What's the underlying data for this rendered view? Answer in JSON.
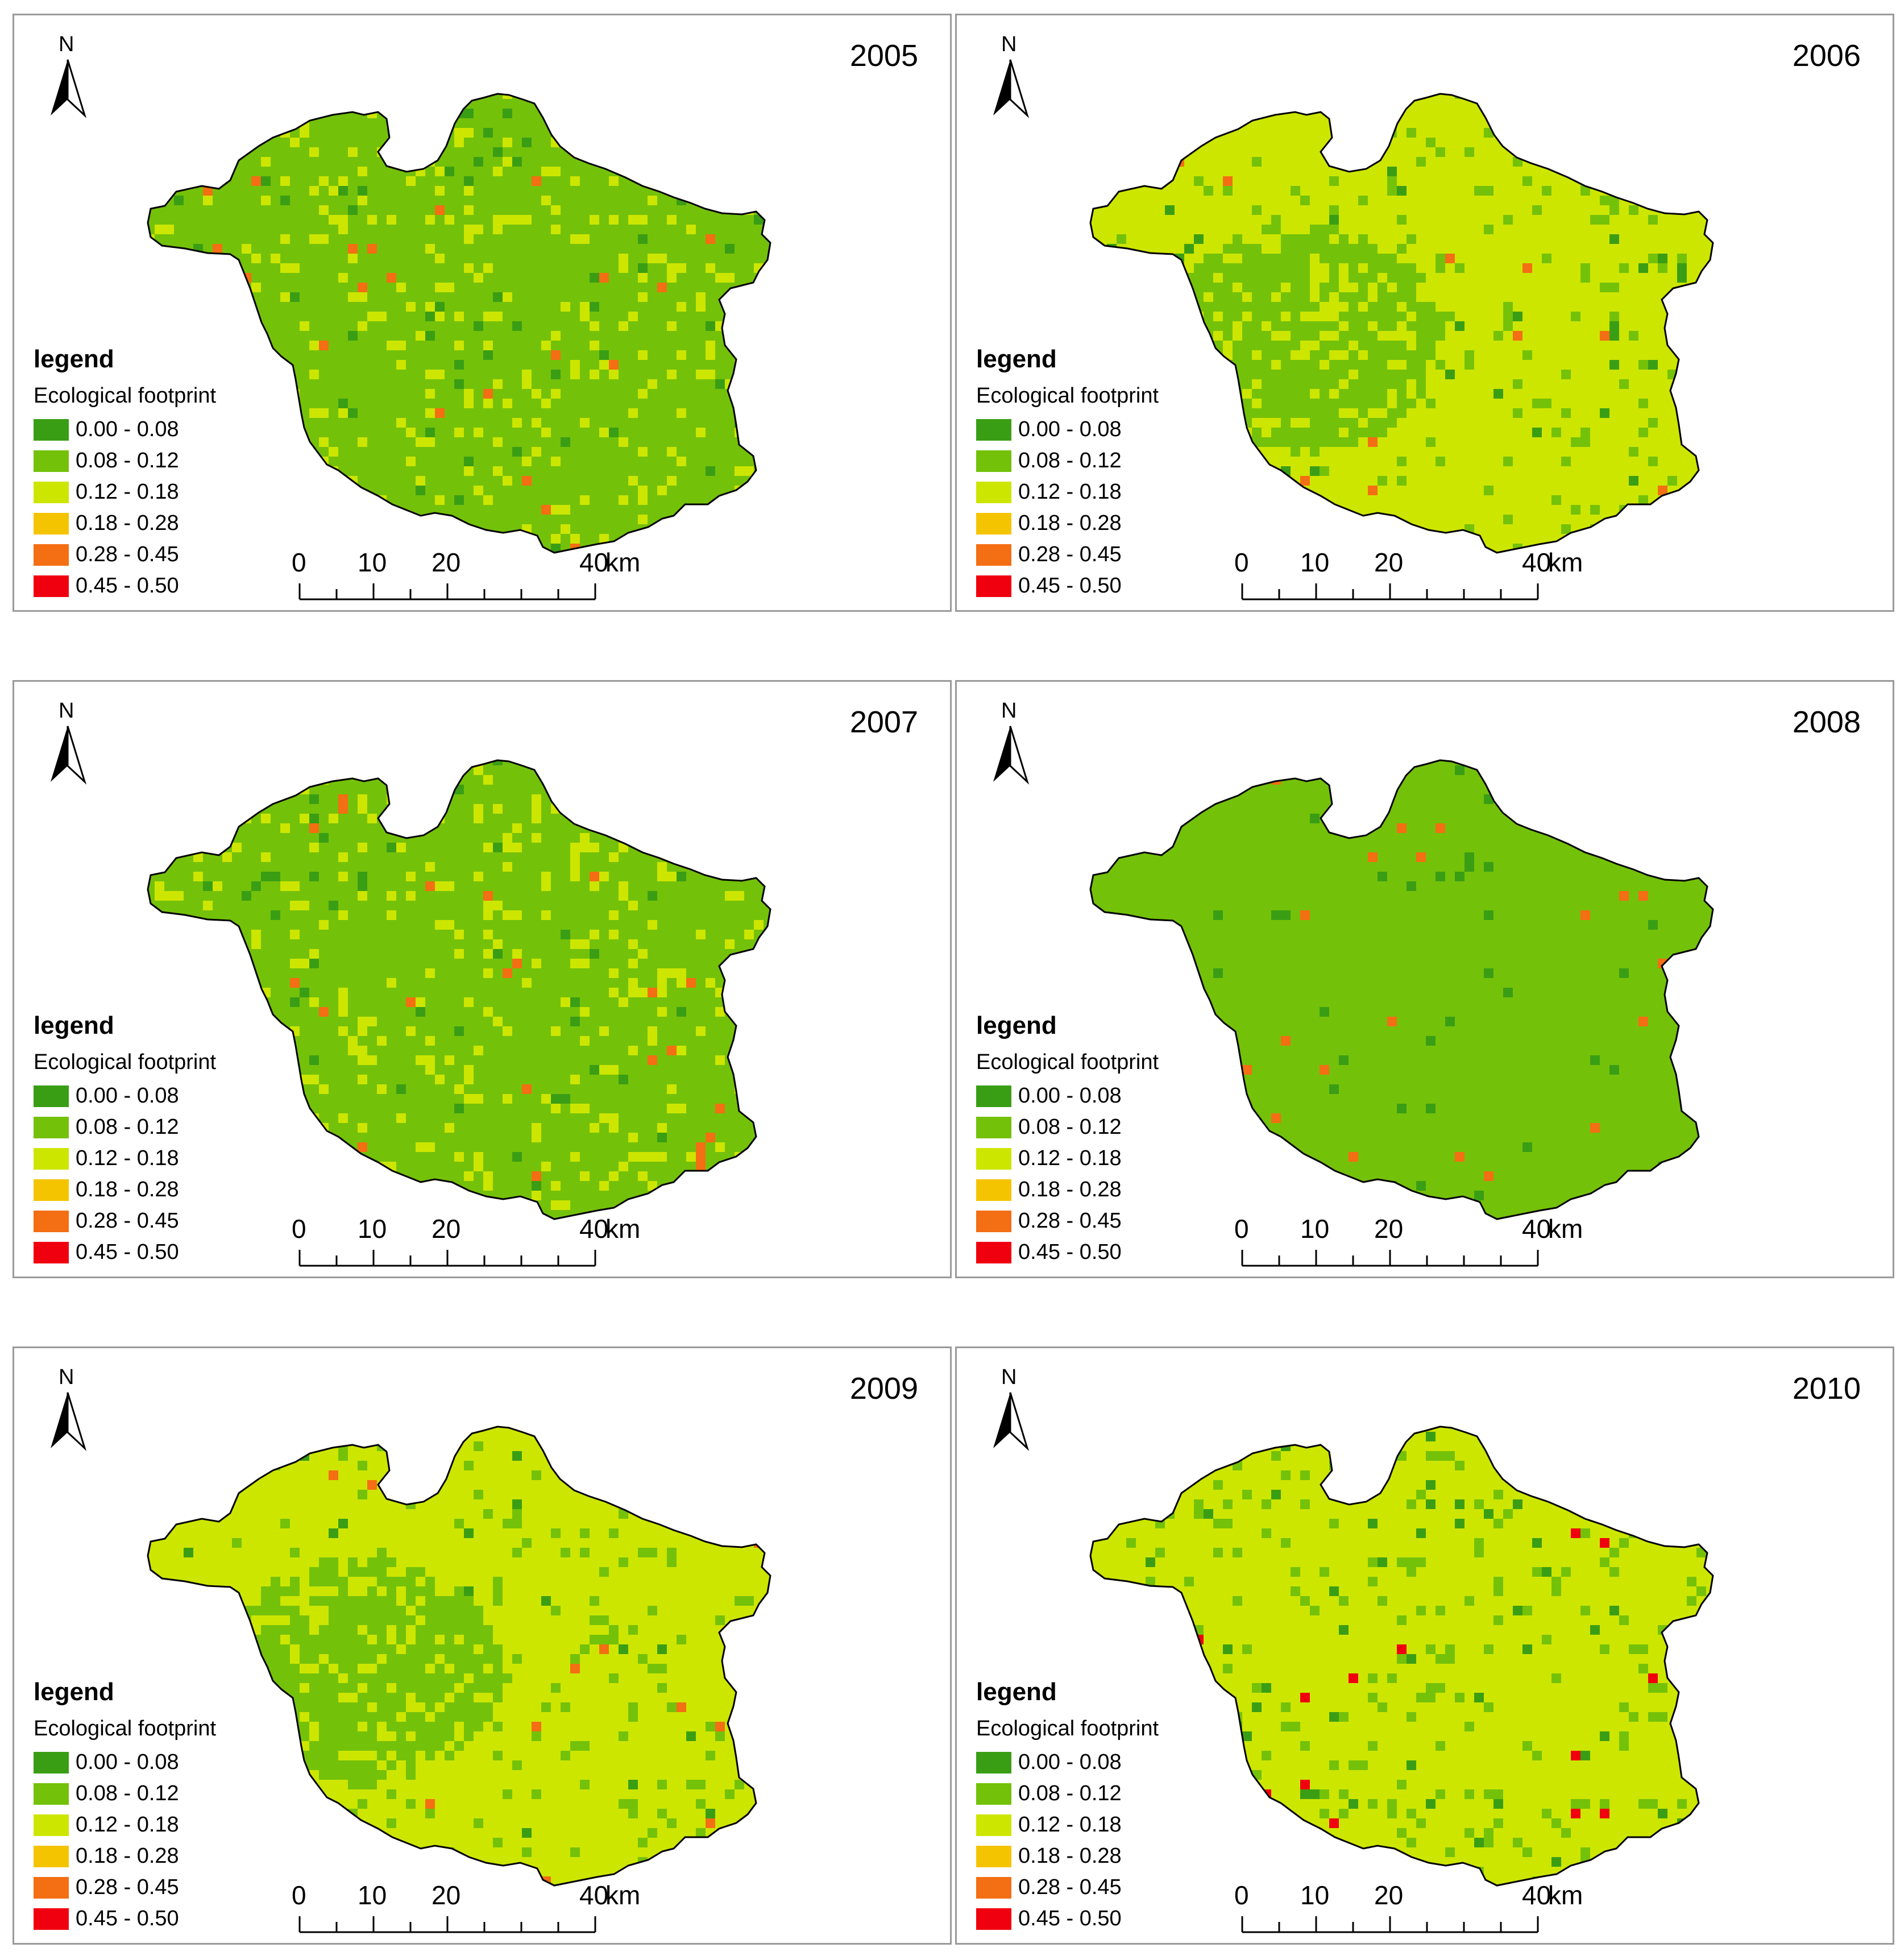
{
  "legend": {
    "title": "legend",
    "subtitle": "Ecological footprint",
    "classes": [
      {
        "label": "0.00 - 0.08",
        "color": "#3a9e15"
      },
      {
        "label": "0.08 - 0.12",
        "color": "#74c10a"
      },
      {
        "label": "0.12 - 0.18",
        "color": "#cde600"
      },
      {
        "label": "0.18 - 0.28",
        "color": "#f5c400"
      },
      {
        "label": "0.28 - 0.45",
        "color": "#f46e13"
      },
      {
        "label": "0.45 - 0.50",
        "color": "#f0000e"
      }
    ]
  },
  "north_arrow": {
    "letter": "N",
    "icon": "north-arrow-icon"
  },
  "scalebar": {
    "labels": [
      "0",
      "10",
      "20",
      "40"
    ],
    "unit": "km"
  },
  "panels": [
    {
      "year": "2005",
      "base_class": "0.08 - 0.12"
    },
    {
      "year": "2006",
      "base_class": "0.12 - 0.18"
    },
    {
      "year": "2007",
      "base_class": "0.08 - 0.12"
    },
    {
      "year": "2008",
      "base_class": "0.08 - 0.12"
    },
    {
      "year": "2009",
      "base_class": "0.12 - 0.18"
    },
    {
      "year": "2010",
      "base_class": "0.12 - 0.18"
    }
  ]
}
